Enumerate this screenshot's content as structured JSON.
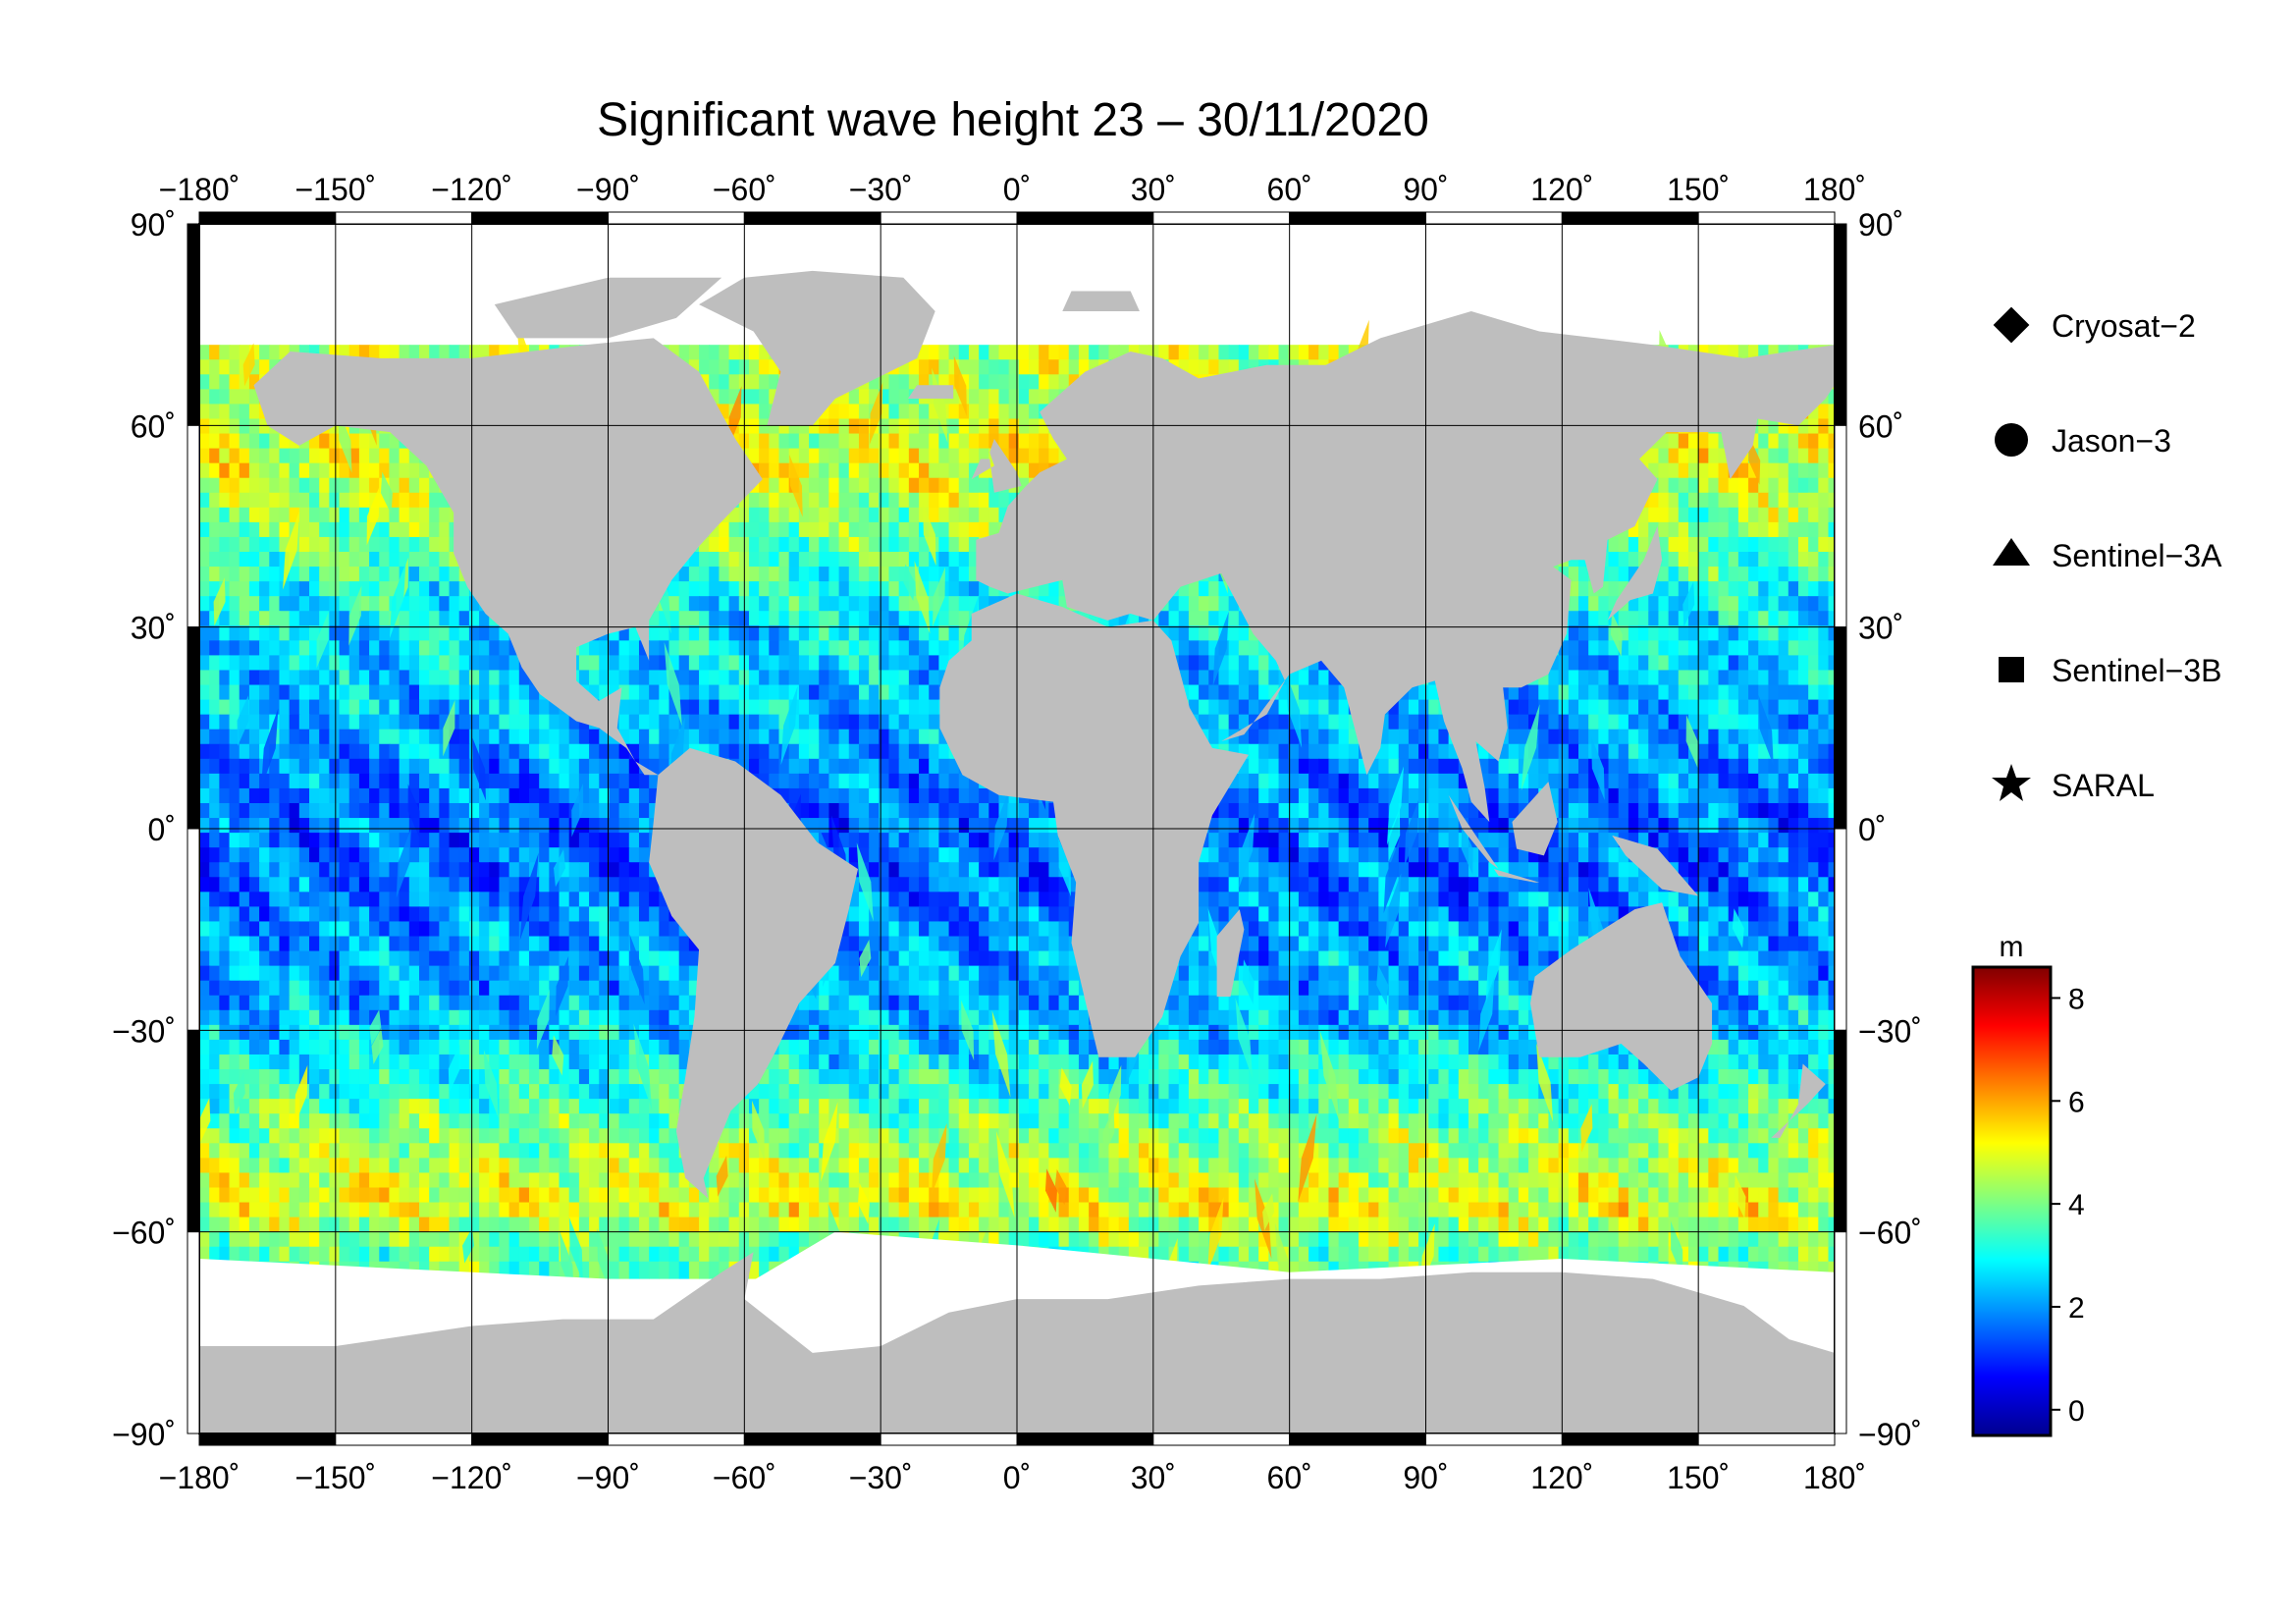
{
  "title": "Significant wave height 23 – 30/11/2020",
  "map": {
    "projection": "equirectangular",
    "lon_range": [
      -180,
      180
    ],
    "lat_range": [
      -90,
      90
    ],
    "grid": true,
    "land_color": "#bebebe",
    "ice_color": "#ffffff",
    "lon_ticks": [
      "−180˚",
      "−150˚",
      "−120˚",
      "−90˚",
      "−60˚",
      "−30˚",
      "0˚",
      "30˚",
      "60˚",
      "90˚",
      "120˚",
      "150˚",
      "180˚"
    ],
    "lat_ticks_left": [
      "90˚",
      "60˚",
      "30˚",
      "0˚",
      "−30˚",
      "−60˚",
      "−90˚"
    ],
    "lat_ticks_right": [
      "90˚",
      "60˚",
      "30˚",
      "0˚",
      "−30˚",
      "−60˚",
      "−90˚"
    ]
  },
  "legend": {
    "items": [
      {
        "label": "Cryosat−2",
        "marker": "diamond"
      },
      {
        "label": "Jason−3",
        "marker": "circle"
      },
      {
        "label": "Sentinel−3A",
        "marker": "triangle"
      },
      {
        "label": "Sentinel−3B",
        "marker": "square"
      },
      {
        "label": "SARAL",
        "marker": "star"
      }
    ]
  },
  "colorbar": {
    "unit": "m",
    "range": [
      -0.5,
      8.6
    ],
    "tick_values": [
      0,
      2,
      4,
      6,
      8
    ],
    "tick_labels": [
      "0",
      "2",
      "4",
      "6",
      "8"
    ],
    "colormap": [
      "#00008f",
      "#0000ff",
      "#0080ff",
      "#00ffff",
      "#80ff80",
      "#ffff00",
      "#ff8000",
      "#ff0000",
      "#800000"
    ]
  },
  "chart_data": {
    "type": "heatmap",
    "title": "Significant wave height 23 – 30/11/2020",
    "variable": "significant wave height",
    "unit": "m",
    "x_range": [
      -180,
      180
    ],
    "y_range": [
      -90,
      90
    ],
    "value_range": [
      0,
      8
    ],
    "series": [
      {
        "name": "Cryosat−2"
      },
      {
        "name": "Jason−3"
      },
      {
        "name": "Sentinel−3A"
      },
      {
        "name": "Sentinel−3B"
      },
      {
        "name": "SARAL"
      }
    ],
    "swh_by_latitude_m": [
      {
        "lat": 65,
        "swh": 4.5
      },
      {
        "lat": 55,
        "swh": 5.0
      },
      {
        "lat": 45,
        "swh": 4.0
      },
      {
        "lat": 35,
        "swh": 3.0
      },
      {
        "lat": 25,
        "swh": 2.5
      },
      {
        "lat": 15,
        "swh": 2.2
      },
      {
        "lat": 5,
        "swh": 1.6
      },
      {
        "lat": -5,
        "swh": 1.6
      },
      {
        "lat": -15,
        "swh": 2.0
      },
      {
        "lat": -25,
        "swh": 2.2
      },
      {
        "lat": -35,
        "swh": 3.0
      },
      {
        "lat": -45,
        "swh": 4.2
      },
      {
        "lat": -55,
        "swh": 5.0
      },
      {
        "lat": -62,
        "swh": 3.8
      }
    ]
  }
}
